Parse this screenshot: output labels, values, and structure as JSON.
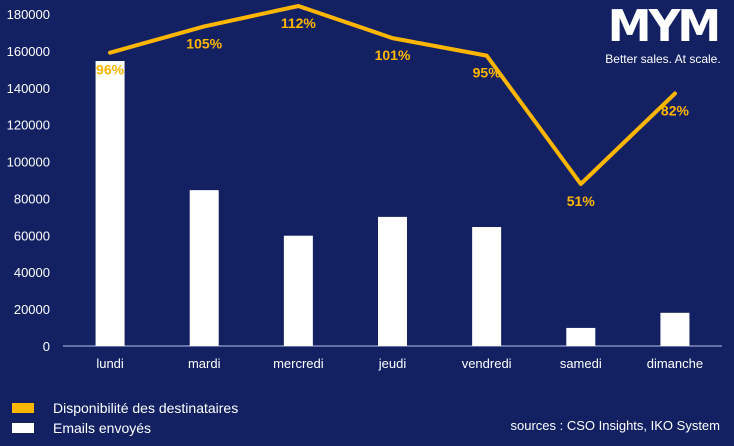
{
  "logo": {
    "mark": "MYM",
    "tagline": "Better sales. At scale."
  },
  "legend": {
    "items": [
      {
        "label": "Disponibilité des destinataires",
        "color": "#FFB600"
      },
      {
        "label": "Emails envoyés",
        "color": "#FFFFFF"
      }
    ]
  },
  "sources": "sources : CSO Insights, IKO System",
  "colors": {
    "background": "#132163",
    "line": "#FFB600",
    "bar": "#FFFFFF",
    "axis": "#B8C4E8"
  },
  "chart_data": {
    "type": "bar",
    "title": "",
    "xlabel": "",
    "ylabel": "",
    "categories": [
      "lundi",
      "mardi",
      "mercredi",
      "jeudi",
      "vendredi",
      "samedi",
      "dimanche"
    ],
    "ylim": [
      0,
      180000
    ],
    "yticks": [
      0,
      20000,
      40000,
      60000,
      80000,
      100000,
      120000,
      140000,
      160000,
      180000
    ],
    "grid": false,
    "legend_position": "bottom-left",
    "series": [
      {
        "name": "Emails envoyés",
        "type": "bar",
        "values": [
          154500,
          84500,
          59800,
          70000,
          64500,
          9800,
          18000
        ]
      },
      {
        "name": "Disponibilité des destinataires",
        "type": "line",
        "values": [
          96,
          105,
          112,
          101,
          95,
          51,
          82
        ],
        "labels": [
          "96%",
          "105%",
          "112%",
          "101%",
          "95%",
          "51%",
          "82%"
        ],
        "unit": "%"
      }
    ]
  }
}
